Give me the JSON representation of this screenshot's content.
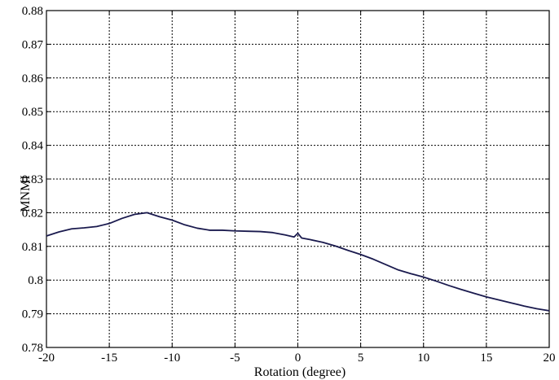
{
  "chart_data": {
    "type": "line",
    "title": "",
    "xlabel": "Rotation (degree)",
    "ylabel": "MNMI",
    "xlim": [
      -20,
      20
    ],
    "ylim": [
      0.78,
      0.88
    ],
    "xticks": [
      -20,
      -15,
      -10,
      -5,
      0,
      5,
      10,
      15,
      20
    ],
    "xtick_labels": [
      "-20",
      "-15",
      "-10",
      "-5",
      "0",
      "5",
      "10",
      "15",
      "20"
    ],
    "yticks": [
      0.78,
      0.79,
      0.8,
      0.81,
      0.82,
      0.83,
      0.84,
      0.85,
      0.86,
      0.87,
      0.88
    ],
    "ytick_labels": [
      "0.78",
      "0.79",
      "0.8",
      "0.81",
      "0.82",
      "0.83",
      "0.84",
      "0.85",
      "0.86",
      "0.87",
      "0.88"
    ],
    "grid": true,
    "line_color": "#1a1a4e",
    "series": [
      {
        "x": [
          -20,
          -19,
          -18,
          -17,
          -16,
          -15,
          -14,
          -13,
          -12,
          -11,
          -10,
          -9,
          -8,
          -7,
          -6,
          -5,
          -4,
          -3,
          -2,
          -1,
          -0.3,
          0,
          0.3,
          1,
          2,
          3,
          4,
          5,
          6,
          7,
          8,
          9,
          10,
          11,
          12,
          13,
          14,
          15,
          16,
          17,
          18,
          19,
          20
        ],
        "values": [
          0.8131,
          0.8143,
          0.8152,
          0.8155,
          0.8159,
          0.8168,
          0.8183,
          0.8195,
          0.82,
          0.8188,
          0.8178,
          0.8164,
          0.8154,
          0.8148,
          0.8148,
          0.8146,
          0.8145,
          0.8144,
          0.8141,
          0.8134,
          0.8128,
          0.8139,
          0.8125,
          0.812,
          0.8112,
          0.8101,
          0.8088,
          0.8076,
          0.8062,
          0.8046,
          0.803,
          0.8019,
          0.8009,
          0.7997,
          0.7984,
          0.7972,
          0.7961,
          0.795,
          0.7941,
          0.7932,
          0.7923,
          0.7915,
          0.7909
        ]
      }
    ]
  }
}
